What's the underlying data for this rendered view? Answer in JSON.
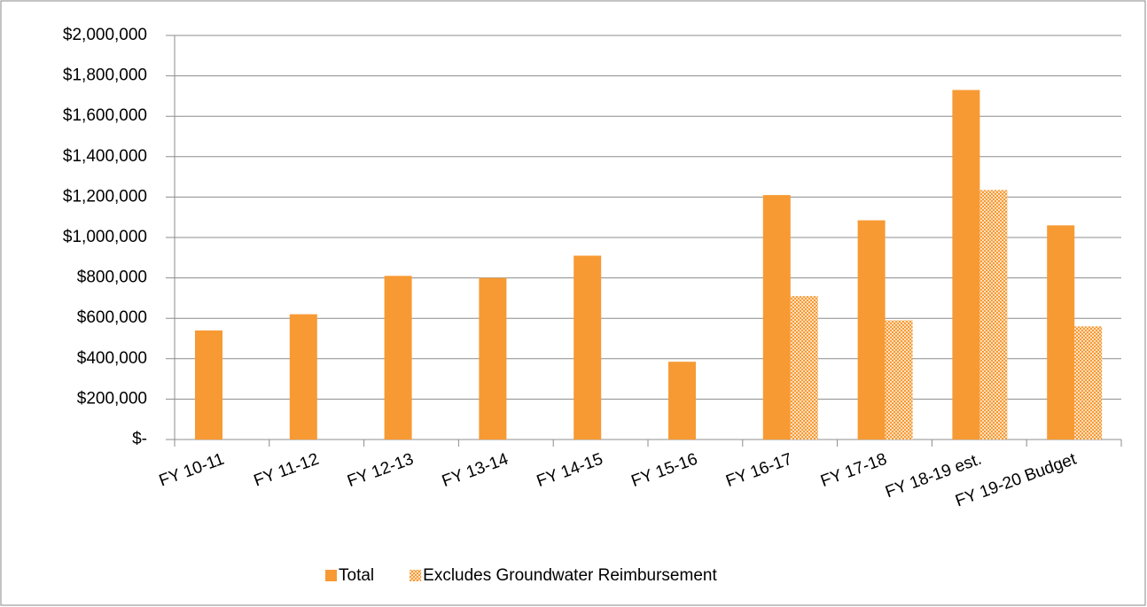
{
  "chart_data": {
    "type": "bar",
    "categories": [
      "FY 10-11",
      "FY 11-12",
      "FY 12-13",
      "FY 13-14",
      "FY 14-15",
      "FY 15-16",
      "FY 16-17",
      "FY 17-18",
      "FY 18-19 est.",
      "FY 19-20 Budget"
    ],
    "series": [
      {
        "name": "Total",
        "color": "#f79a33",
        "values": [
          540000,
          620000,
          810000,
          800000,
          910000,
          385000,
          1210000,
          1085000,
          1730000,
          1060000
        ]
      },
      {
        "name": "Excludes Groundwater Reimbursement",
        "color": "#f79a33",
        "pattern": "dots",
        "values": [
          null,
          null,
          null,
          null,
          null,
          null,
          710000,
          590000,
          1235000,
          560000
        ]
      }
    ],
    "ylim": [
      0,
      2000000
    ],
    "yticks": [
      {
        "value": 0,
        "label": "$-"
      },
      {
        "value": 200000,
        "label": "$200,000"
      },
      {
        "value": 400000,
        "label": "$400,000"
      },
      {
        "value": 600000,
        "label": "$600,000"
      },
      {
        "value": 800000,
        "label": "$800,000"
      },
      {
        "value": 1000000,
        "label": "$1,000,000"
      },
      {
        "value": 1200000,
        "label": "$1,200,000"
      },
      {
        "value": 1400000,
        "label": "$1,400,000"
      },
      {
        "value": 1600000,
        "label": "$1,600,000"
      },
      {
        "value": 1800000,
        "label": "$1,800,000"
      },
      {
        "value": 2000000,
        "label": "$2,000,000"
      }
    ],
    "grid": true,
    "legend": "bottom"
  }
}
